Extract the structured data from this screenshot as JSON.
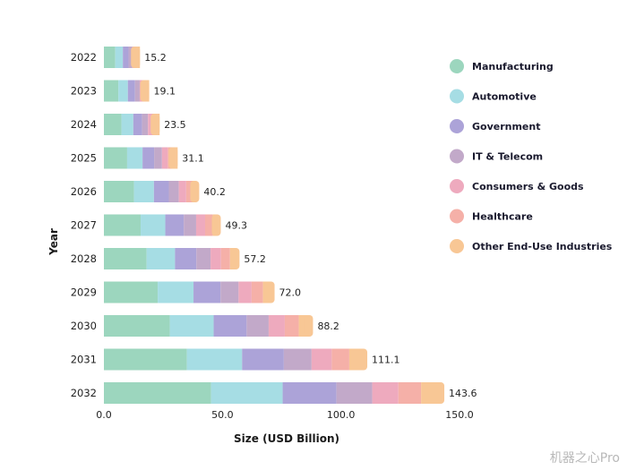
{
  "watermark": "机器之心Pro",
  "chart_data": {
    "type": "bar",
    "orientation": "horizontal",
    "stacked": true,
    "xlabel": "Size (USD Billion)",
    "ylabel": "Year",
    "xlim": [
      0,
      150
    ],
    "xticks": [
      0,
      50,
      100,
      150
    ],
    "xtick_labels": [
      "0.0",
      "50.0",
      "100.0",
      "150.0"
    ],
    "grid": false,
    "legend_position": "right",
    "categories": [
      "2022",
      "2023",
      "2024",
      "2025",
      "2026",
      "2027",
      "2028",
      "2029",
      "2030",
      "2031",
      "2032"
    ],
    "totals": [
      15.2,
      19.1,
      23.5,
      31.1,
      40.2,
      49.3,
      57.2,
      72.0,
      88.2,
      111.1,
      143.6
    ],
    "total_labels": [
      "15.2",
      "19.1",
      "23.5",
      "31.1",
      "40.2",
      "49.3",
      "57.2",
      "72.0",
      "88.2",
      "111.1",
      "143.6"
    ],
    "series": [
      {
        "name": "Manufacturing",
        "color": "#9cd6be",
        "values": [
          4.8,
          6.1,
          7.4,
          9.8,
          12.7,
          15.5,
          18.0,
          22.7,
          27.8,
          35.0,
          45.2
        ]
      },
      {
        "name": "Automotive",
        "color": "#a6dde4",
        "values": [
          3.2,
          4.0,
          5.0,
          6.5,
          8.4,
          10.4,
          12.0,
          15.1,
          18.5,
          23.3,
          30.2
        ]
      },
      {
        "name": "Government",
        "color": "#aca3d8",
        "values": [
          2.4,
          3.0,
          3.7,
          4.9,
          6.3,
          7.8,
          9.0,
          11.4,
          13.9,
          17.6,
          22.7
        ]
      },
      {
        "name": "IT & Telecom",
        "color": "#c2a9c9",
        "values": [
          1.6,
          2.0,
          2.5,
          3.3,
          4.2,
          5.2,
          6.0,
          7.6,
          9.3,
          11.7,
          15.1
        ]
      },
      {
        "name": "Consumers & Goods",
        "color": "#eeaabe",
        "values": [
          1.2,
          1.5,
          1.8,
          2.4,
          3.1,
          3.8,
          4.4,
          5.5,
          6.8,
          8.5,
          11.0
        ]
      },
      {
        "name": "Healthcare",
        "color": "#f5b0a8",
        "values": [
          1.0,
          1.3,
          1.6,
          2.1,
          2.7,
          3.3,
          3.8,
          4.8,
          5.9,
          7.4,
          9.6
        ]
      },
      {
        "name": "Other End-Use Industries",
        "color": "#f8c795",
        "values": [
          1.0,
          1.2,
          1.5,
          2.1,
          2.8,
          3.3,
          4.0,
          4.9,
          6.0,
          7.6,
          9.8
        ]
      }
    ]
  }
}
